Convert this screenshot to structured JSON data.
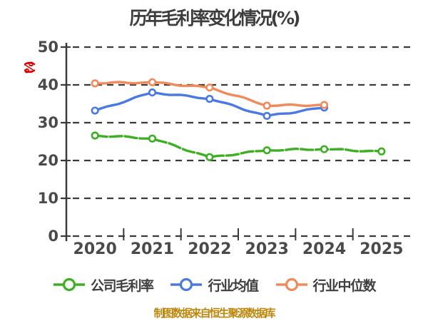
{
  "title": "历年毛利率变化情况(%)",
  "y_axis_unit_label": "(%)",
  "source_note": "制图数据来自恒生聚源数据库",
  "colors": {
    "title_text": "#3d3d3d",
    "tick_label": "#4a4a4a",
    "grid_line": "#3a3a3a",
    "unit_label": "#e00000",
    "source_note_text": "#bd870b",
    "legend_text": "#3f3f3f",
    "marker_fill": "#ffffff"
  },
  "chart_data": {
    "type": "line",
    "title": "历年毛利率变化情况(%)",
    "categories": [
      "2020",
      "2021",
      "2022",
      "2023",
      "2024",
      "2025"
    ],
    "series": [
      {
        "name": "公司毛利率",
        "color": "#3cb022",
        "style": "sketch-dashed",
        "values": [
          26.6,
          25.8,
          20.9,
          22.7,
          23.0,
          22.4
        ]
      },
      {
        "name": "行业均值",
        "color": "#4a79e2",
        "style": "solid",
        "values": [
          33.2,
          38.0,
          36.3,
          31.8,
          34.0,
          null
        ]
      },
      {
        "name": "行业中位数",
        "color": "#f18a5a",
        "style": "solid",
        "values": [
          40.4,
          40.7,
          39.3,
          34.5,
          34.7,
          null
        ]
      }
    ],
    "xlabel": "",
    "ylabel": "(%)",
    "ylim": [
      0,
      50
    ],
    "yticks": [
      0,
      10,
      20,
      30,
      40,
      50
    ],
    "grid": "horizontal-dashed",
    "legend_position": "bottom",
    "hand_drawn_style": true
  }
}
